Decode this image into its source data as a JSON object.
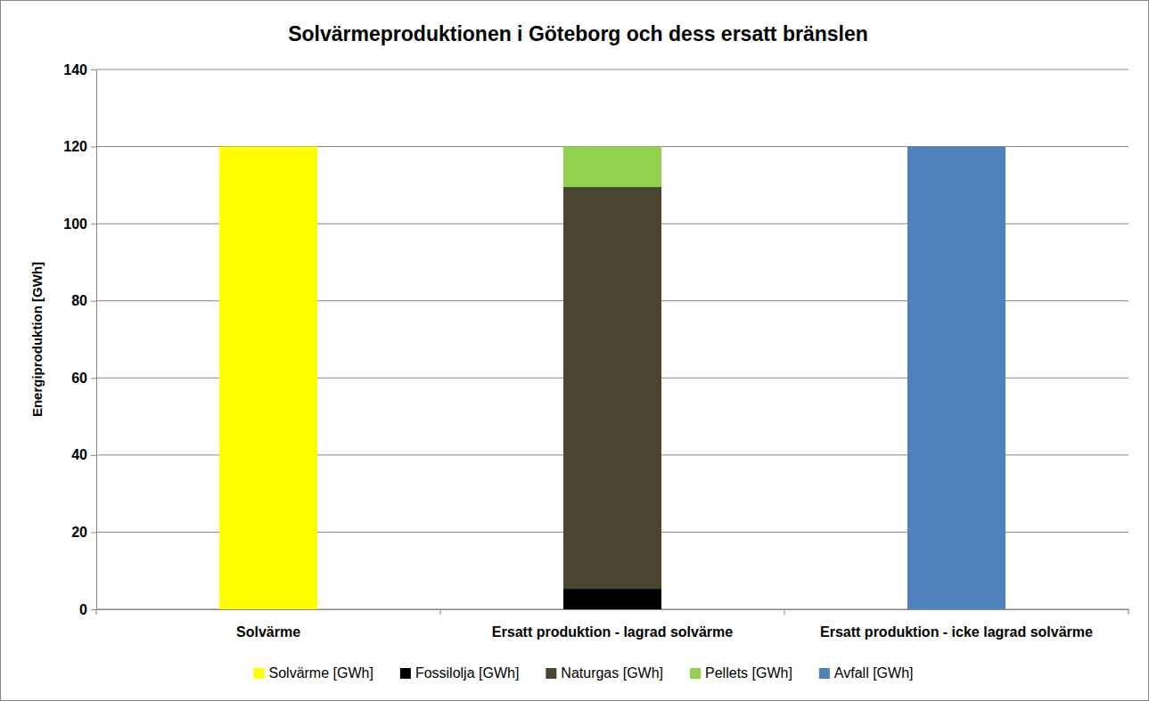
{
  "chart_data": {
    "type": "bar",
    "stacked": true,
    "title": "Solvärmeproduktionen i Göteborg och dess ersatt bränslen",
    "y_label": "Energiproduktion  [GWh]",
    "categories": [
      "Solvärme",
      "Ersatt produktion - lagrad solvärme",
      "Ersatt produktion - icke lagrad solvärme"
    ],
    "series": [
      {
        "name": "Solvärme [GWh]",
        "color": "#ffff00",
        "values": [
          120,
          null,
          null
        ]
      },
      {
        "name": "Fossilolja [GWh]",
        "color": "#000000",
        "values": [
          null,
          5.3,
          null
        ]
      },
      {
        "name": "Naturgas [GWh]",
        "color": "#4a4530",
        "values": [
          null,
          104.2,
          null
        ]
      },
      {
        "name": "Pellets [GWh]",
        "color": "#92d050",
        "values": [
          null,
          10.5,
          null
        ]
      },
      {
        "name": "Avfall [GWh]",
        "color": "#4f81bd",
        "values": [
          null,
          null,
          120
        ]
      }
    ],
    "ylim": [
      0,
      140
    ],
    "yticks": [
      0,
      20,
      40,
      60,
      80,
      100,
      120,
      140
    ],
    "grid": true,
    "legend": "bottom"
  }
}
